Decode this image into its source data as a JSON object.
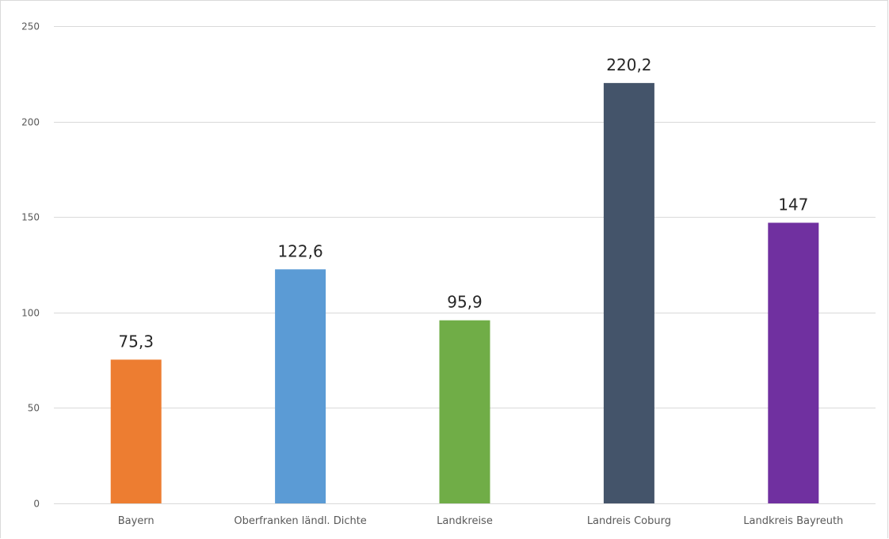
{
  "chart_data": {
    "type": "bar",
    "title": "",
    "xlabel": "",
    "ylabel": "",
    "ylim": [
      0,
      250
    ],
    "yticks": [
      0,
      50,
      100,
      150,
      200,
      250
    ],
    "ytick_labels": [
      "0",
      "50",
      "100",
      "150",
      "200",
      "250"
    ],
    "grid": true,
    "legend": "none",
    "categories": [
      "Bayern",
      "Oberfranken ländl. Dichte",
      "Landkreise",
      "Landreis Coburg",
      "Landkreis Bayreuth"
    ],
    "values": [
      75.3,
      122.6,
      95.9,
      220.2,
      147
    ],
    "data_labels": [
      "75,3",
      "122,6",
      "95,9",
      "220,2",
      "147"
    ],
    "colors": [
      "#ED7D31",
      "#5B9BD5",
      "#70AD47",
      "#44546A",
      "#7030A0"
    ]
  }
}
